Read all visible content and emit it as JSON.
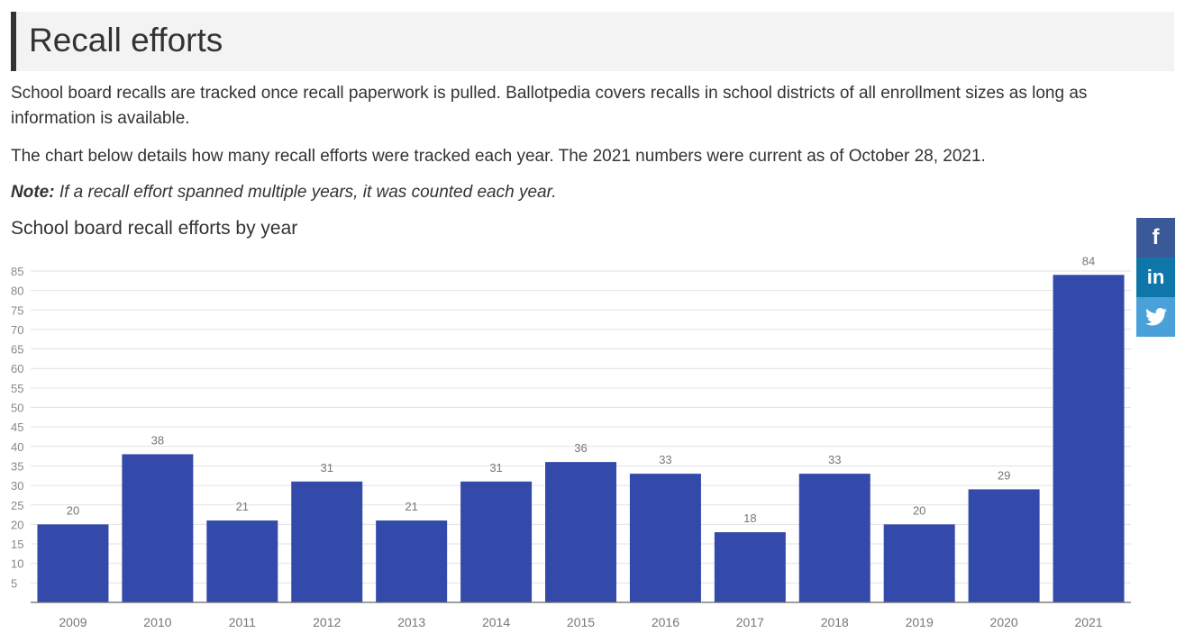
{
  "section": {
    "heading": "Recall efforts",
    "paragraph1": "School board recalls are tracked once recall paperwork is pulled. Ballotpedia covers recalls in school districts of all enrollment sizes as long as information is available.",
    "paragraph2": "The chart below details how many recall efforts were tracked each year. The 2021 numbers were current as of October 28, 2021.",
    "note_label": "Note:",
    "note_text": " If a recall effort spanned multiple years, it was counted each year."
  },
  "share": {
    "facebook_glyph": "f",
    "linkedin_glyph": "in",
    "twitter_icon": "twitter-bird-icon"
  },
  "colors": {
    "bar": "#344aaa",
    "facebook": "#3b5998",
    "linkedin": "#0e76a8",
    "twitter": "#4aa0d8"
  },
  "chart_data": {
    "type": "bar",
    "title": "School board recall efforts by year",
    "xlabel": "",
    "ylabel": "",
    "categories": [
      "2009",
      "2010",
      "2011",
      "2012",
      "2013",
      "2014",
      "2015",
      "2016",
      "2017",
      "2018",
      "2019",
      "2020",
      "2021"
    ],
    "values": [
      20,
      38,
      21,
      31,
      21,
      31,
      36,
      33,
      18,
      33,
      20,
      29,
      84
    ],
    "ylim": [
      0,
      85
    ],
    "yticks": [
      5,
      10,
      15,
      20,
      25,
      30,
      35,
      40,
      45,
      50,
      55,
      60,
      65,
      70,
      75,
      80,
      85
    ],
    "grid": true,
    "data_labels": true,
    "legend": "none"
  }
}
